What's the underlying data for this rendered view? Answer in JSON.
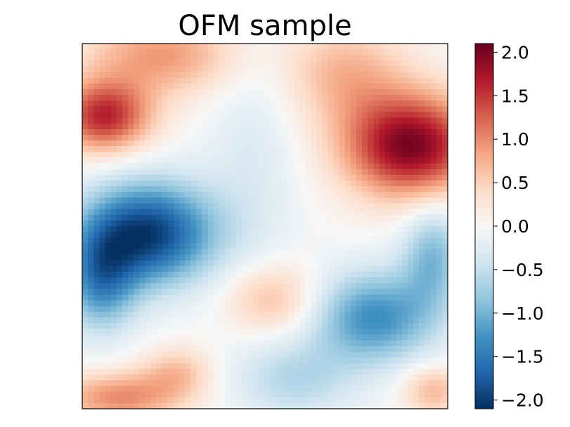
{
  "chart_data": {
    "type": "heatmap",
    "title": "OFM sample",
    "xlabel": "",
    "ylabel": "",
    "x_ticks": [],
    "y_ticks": [],
    "grid": false,
    "colormap": "RdBu_r",
    "color_range": [
      -2.1,
      2.1
    ],
    "colorbar": {
      "ticks": [
        2.0,
        1.5,
        1.0,
        0.5,
        0.0,
        -0.5,
        -1.0,
        -1.5,
        -2.0
      ],
      "tick_labels": [
        "2.0",
        "1.5",
        "1.0",
        "0.5",
        "0.0",
        "−0.5",
        "−1.0",
        "−1.5",
        "−2.0"
      ]
    },
    "grid_size": [
      64,
      64
    ],
    "features": [
      {
        "x": 0.06,
        "y": 0.2,
        "value": 1.6,
        "sx": 0.09,
        "sy": 0.07
      },
      {
        "x": 0.22,
        "y": 0.03,
        "value": 0.9,
        "sx": 0.15,
        "sy": 0.08
      },
      {
        "x": 0.9,
        "y": 0.28,
        "value": 2.0,
        "sx": 0.13,
        "sy": 0.1
      },
      {
        "x": 0.72,
        "y": 0.08,
        "value": 0.7,
        "sx": 0.12,
        "sy": 0.1
      },
      {
        "x": 0.18,
        "y": 0.52,
        "value": -2.0,
        "sx": 0.13,
        "sy": 0.1
      },
      {
        "x": 0.05,
        "y": 0.65,
        "value": -1.2,
        "sx": 0.07,
        "sy": 0.1
      },
      {
        "x": 0.47,
        "y": 0.3,
        "value": -0.3,
        "sx": 0.09,
        "sy": 0.25
      },
      {
        "x": 0.8,
        "y": 0.75,
        "value": -1.3,
        "sx": 0.12,
        "sy": 0.09
      },
      {
        "x": 0.96,
        "y": 0.58,
        "value": -0.9,
        "sx": 0.06,
        "sy": 0.1
      },
      {
        "x": 0.58,
        "y": 0.92,
        "value": -0.6,
        "sx": 0.12,
        "sy": 0.08
      },
      {
        "x": 0.1,
        "y": 0.97,
        "value": 1.0,
        "sx": 0.12,
        "sy": 0.05
      },
      {
        "x": 0.26,
        "y": 0.9,
        "value": 0.6,
        "sx": 0.07,
        "sy": 0.05
      },
      {
        "x": 0.52,
        "y": 0.7,
        "value": 0.7,
        "sx": 0.09,
        "sy": 0.07
      },
      {
        "x": 0.96,
        "y": 0.95,
        "value": 0.7,
        "sx": 0.06,
        "sy": 0.05
      }
    ]
  }
}
